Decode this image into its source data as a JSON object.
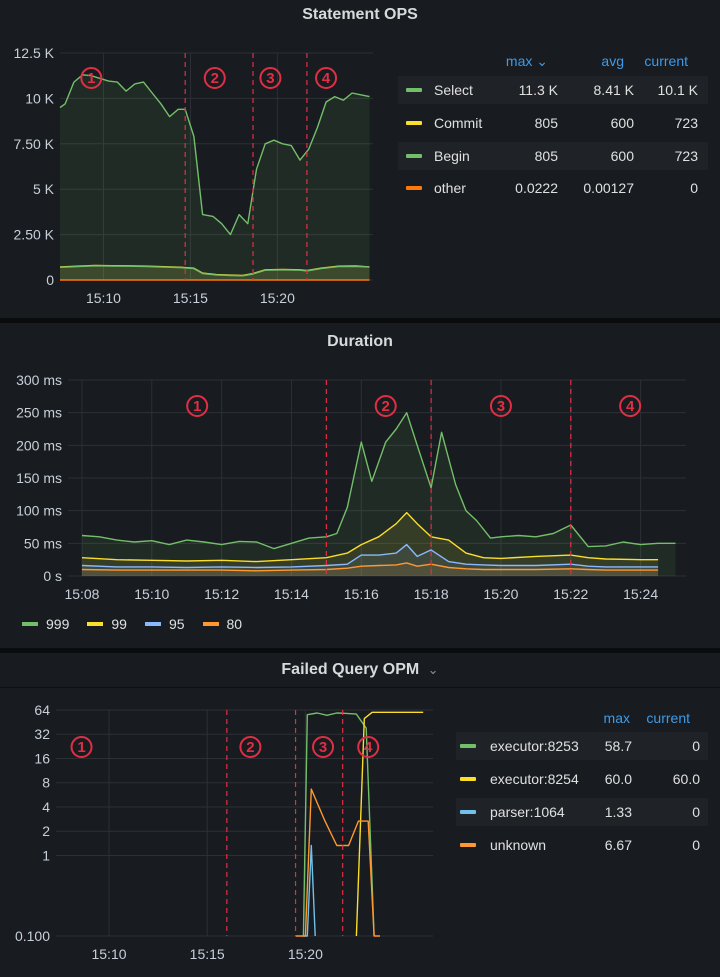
{
  "panels": [
    {
      "title": "Statement OPS",
      "legend": {
        "headers": {
          "max": "max ⌄",
          "avg": "avg",
          "current": "current"
        },
        "rows": [
          {
            "name": "Select",
            "color": "#73bf69",
            "max": "11.3 K",
            "avg": "8.41 K",
            "current": "10.1 K"
          },
          {
            "name": "Commit",
            "color": "#fade2a",
            "max": "805",
            "avg": "600",
            "current": "723"
          },
          {
            "name": "Begin",
            "color": "#73bf69",
            "max": "805",
            "avg": "600",
            "current": "723"
          },
          {
            "name": "other",
            "color": "#ff780a",
            "max": "0.0222",
            "avg": "0.00127",
            "current": "0"
          }
        ]
      },
      "markers": [
        "1",
        "2",
        "3",
        "4"
      ]
    },
    {
      "title": "Duration",
      "legend": {
        "rows": [
          {
            "name": "999",
            "color": "#73bf69"
          },
          {
            "name": "99",
            "color": "#fade2a"
          },
          {
            "name": "95",
            "color": "#8ab8ff"
          },
          {
            "name": "80",
            "color": "#ff9830"
          }
        ]
      },
      "markers": [
        "1",
        "2",
        "3",
        "4"
      ]
    },
    {
      "title": "Failed Query OPM",
      "title_suffix": "⌄",
      "legend": {
        "headers": {
          "max": "max",
          "current": "current"
        },
        "rows": [
          {
            "name": "executor:8253",
            "color": "#73bf69",
            "max": "58.7",
            "current": "0"
          },
          {
            "name": "executor:8254",
            "color": "#fade2a",
            "max": "60.0",
            "current": "60.0"
          },
          {
            "name": "parser:1064",
            "color": "#73c0e8",
            "max": "1.33",
            "current": "0"
          },
          {
            "name": "unknown",
            "color": "#ff9830",
            "max": "6.67",
            "current": "0"
          }
        ]
      },
      "markers": [
        "1",
        "2",
        "3",
        "4"
      ]
    }
  ],
  "chart_data": [
    {
      "type": "area",
      "title": "Statement OPS",
      "ylim": [
        0,
        12500
      ],
      "yticks": [
        "0",
        "2.50 K",
        "5 K",
        "7.50 K",
        "10 K",
        "12.5 K"
      ],
      "xticks": [
        "15:10",
        "15:15",
        "15:20"
      ],
      "x_range_minutes": [
        7.5,
        25.5
      ],
      "phase_dividers_minutes": [
        14.7,
        18.6,
        21.7
      ],
      "grid": true,
      "series": [
        {
          "name": "Select",
          "x": [
            7.5,
            7.8,
            8.3,
            8.8,
            9.3,
            9.8,
            10.3,
            10.8,
            11.3,
            11.8,
            12.3,
            12.8,
            13.3,
            13.8,
            14.3,
            14.7,
            15.2,
            15.7,
            16.3,
            16.8,
            17.3,
            17.8,
            18.3,
            18.8,
            19.3,
            19.8,
            20.3,
            20.8,
            21.3,
            21.8,
            22.3,
            22.8,
            23.3,
            23.8,
            24.3,
            24.8,
            25.3
          ],
          "values": [
            9500,
            9700,
            10900,
            11300,
            11250,
            11100,
            10950,
            10900,
            10400,
            10800,
            10900,
            10300,
            9700,
            9000,
            9400,
            9400,
            7900,
            3600,
            3500,
            3100,
            2500,
            3600,
            3100,
            6100,
            7500,
            7700,
            7500,
            7400,
            6600,
            7200,
            8400,
            9800,
            10100,
            9900,
            10300,
            10200,
            10100
          ]
        },
        {
          "name": "Commit",
          "x": [
            7.5,
            8.5,
            9.5,
            10.5,
            11.5,
            12.5,
            13.5,
            14.5,
            15.2,
            15.7,
            16.5,
            17.3,
            18,
            18.6,
            19.3,
            20.3,
            21.3,
            21.7,
            22.5,
            23.5,
            24.5,
            25.3
          ],
          "values": [
            720,
            760,
            800,
            790,
            780,
            760,
            730,
            700,
            650,
            380,
            300,
            270,
            250,
            350,
            560,
            580,
            560,
            520,
            650,
            760,
            770,
            723
          ]
        },
        {
          "name": "Begin",
          "x": [
            7.5,
            8.5,
            9.5,
            10.5,
            11.5,
            12.5,
            13.5,
            14.5,
            15.2,
            15.7,
            16.5,
            17.3,
            18,
            18.6,
            19.3,
            20.3,
            21.3,
            21.7,
            22.5,
            23.5,
            24.5,
            25.3
          ],
          "values": [
            700,
            740,
            780,
            770,
            760,
            740,
            710,
            680,
            630,
            360,
            280,
            250,
            230,
            330,
            540,
            560,
            540,
            500,
            630,
            740,
            750,
            723
          ]
        },
        {
          "name": "other",
          "x": [
            7.5,
            25.3
          ],
          "values": [
            0,
            0
          ]
        }
      ]
    },
    {
      "type": "area",
      "title": "Duration",
      "ylim": [
        0,
        300
      ],
      "yticks": [
        "0 s",
        "50 ms",
        "100 ms",
        "150 ms",
        "200 ms",
        "250 ms",
        "300 ms"
      ],
      "xticks": [
        "15:08",
        "15:10",
        "15:12",
        "15:14",
        "15:16",
        "15:18",
        "15:20",
        "15:22",
        "15:24"
      ],
      "x_range_minutes": [
        7.6,
        25.3
      ],
      "phase_dividers_minutes": [
        15.0,
        18.0,
        22.0
      ],
      "grid": true,
      "series": [
        {
          "name": "999",
          "x": [
            8,
            8.5,
            9,
            9.5,
            10,
            10.5,
            11,
            11.5,
            12,
            12.5,
            13,
            13.5,
            14,
            14.5,
            15,
            15.3,
            15.6,
            16,
            16.3,
            16.7,
            17,
            17.3,
            17.6,
            18,
            18.3,
            18.7,
            19,
            19.3,
            19.7,
            20,
            20.5,
            21,
            21.5,
            22,
            22.5,
            23,
            23.5,
            24,
            24.5,
            25
          ],
          "values": [
            62,
            60,
            55,
            52,
            54,
            48,
            55,
            52,
            48,
            53,
            52,
            42,
            50,
            58,
            60,
            65,
            105,
            205,
            145,
            205,
            225,
            250,
            200,
            135,
            220,
            140,
            100,
            85,
            58,
            60,
            62,
            60,
            65,
            78,
            45,
            46,
            52,
            48,
            50,
            50
          ]
        },
        {
          "name": "99",
          "x": [
            8,
            9,
            10,
            11,
            12,
            13,
            14,
            15,
            15.6,
            16,
            16.5,
            17,
            17.3,
            17.6,
            18,
            18.5,
            19,
            19.5,
            20,
            21,
            22,
            22.5,
            23,
            24,
            24.5
          ],
          "values": [
            28,
            25,
            24,
            23,
            24,
            22,
            25,
            28,
            35,
            48,
            60,
            80,
            97,
            80,
            60,
            55,
            35,
            28,
            27,
            30,
            32,
            28,
            26,
            25,
            25
          ]
        },
        {
          "name": "95",
          "x": [
            8,
            9,
            10,
            11,
            12,
            13,
            14,
            15,
            15.6,
            16,
            16.5,
            17,
            17.3,
            17.6,
            18,
            18.5,
            19,
            19.5,
            20,
            21,
            22,
            22.5,
            23,
            24,
            24.5
          ],
          "values": [
            16,
            14,
            14,
            13,
            14,
            13,
            14,
            16,
            18,
            32,
            32,
            35,
            48,
            30,
            40,
            22,
            18,
            17,
            16,
            16,
            18,
            15,
            14,
            14,
            14
          ]
        },
        {
          "name": "80",
          "x": [
            8,
            9,
            10,
            11,
            12,
            13,
            14,
            15,
            15.6,
            16,
            16.5,
            17,
            17.3,
            17.6,
            18,
            18.5,
            19,
            19.5,
            20,
            21,
            22,
            22.5,
            23,
            24,
            24.5
          ],
          "values": [
            10,
            9,
            9,
            9,
            9,
            8,
            9,
            10,
            12,
            15,
            16,
            17,
            20,
            15,
            18,
            13,
            11,
            10,
            10,
            10,
            11,
            10,
            9,
            9,
            9
          ]
        }
      ]
    },
    {
      "type": "line",
      "title": "Failed Query OPM",
      "yscale": "log2",
      "ylim": [
        0.1,
        64
      ],
      "yticks": [
        "0.100",
        "1",
        "2",
        "4",
        "8",
        "16",
        "32",
        "64"
      ],
      "xticks": [
        "15:10",
        "15:15",
        "15:20"
      ],
      "x_range_minutes": [
        7.3,
        26.5
      ],
      "phase_dividers_minutes": [
        16.0,
        19.5,
        21.9
      ],
      "grid": true,
      "series": [
        {
          "name": "executor:8253",
          "x": [
            19.9,
            20.1,
            20.6,
            21.1,
            21.6,
            22.1,
            22.6,
            23.1,
            23.5
          ],
          "values": [
            0.1,
            56,
            58.7,
            55,
            58.7,
            58,
            57,
            38,
            0.1
          ]
        },
        {
          "name": "executor:8254",
          "x": [
            22.6,
            23.0,
            23.4,
            24.0,
            25.0,
            26.0
          ],
          "values": [
            0.1,
            50,
            60,
            60,
            60,
            60
          ]
        },
        {
          "name": "parser:1064",
          "x": [
            19.9,
            20.1,
            20.3,
            20.5
          ],
          "values": [
            0.1,
            0.1,
            1.33,
            0.1
          ]
        },
        {
          "name": "unknown",
          "x": [
            19.5,
            20.0,
            20.3,
            21.0,
            21.6,
            22.2,
            22.7,
            23.2,
            23.5,
            23.8
          ],
          "values": [
            0.1,
            0.1,
            6.67,
            2.67,
            1.33,
            1.33,
            2.67,
            2.67,
            0.1,
            0.1
          ]
        }
      ]
    }
  ]
}
